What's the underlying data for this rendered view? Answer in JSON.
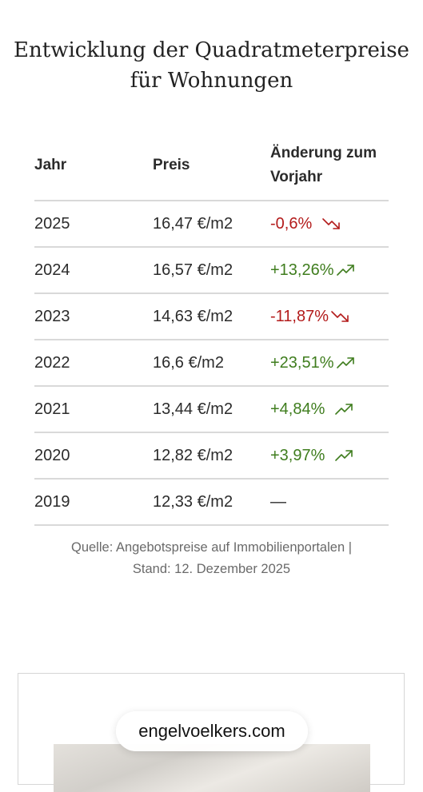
{
  "title": {
    "line1": "Entwicklung der Quadratmeterpreise",
    "line2": "für Wohnungen"
  },
  "table": {
    "headers": {
      "year": "Jahr",
      "price": "Preis",
      "change_line1": "Änderung zum",
      "change_line2": "Vorjahr"
    },
    "rows": [
      {
        "year": "2025",
        "price": "16,47 €/m2",
        "change": "-0,6%",
        "trend": "down"
      },
      {
        "year": "2024",
        "price": "16,57 €/m2",
        "change": "+13,26%",
        "trend": "up"
      },
      {
        "year": "2023",
        "price": "14,63 €/m2",
        "change": "-11,87%",
        "trend": "down"
      },
      {
        "year": "2022",
        "price": "16,6 €/m2",
        "change": "+23,51%",
        "trend": "up"
      },
      {
        "year": "2021",
        "price": "13,44 €/m2",
        "change": "+4,84%",
        "trend": "up"
      },
      {
        "year": "2020",
        "price": "12,82 €/m2",
        "change": "+3,97%",
        "trend": "up"
      },
      {
        "year": "2019",
        "price": "12,33 €/m2",
        "change": "—",
        "trend": "none"
      }
    ]
  },
  "source": {
    "line1": "Quelle: Angebotspreise auf Immobilienportalen |",
    "line2": "Stand: 12. Dezember 2025"
  },
  "browser": {
    "url": "engelvoelkers.com"
  },
  "colors": {
    "positive": "#3f7d1e",
    "negative": "#b31b1b"
  },
  "icons": {
    "up": "trend-up-icon",
    "down": "trend-down-icon"
  }
}
